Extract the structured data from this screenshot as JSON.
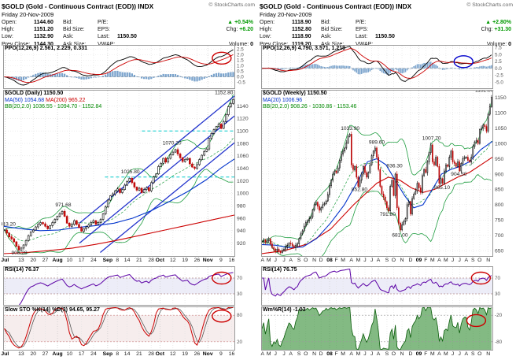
{
  "copyright": "© StockCharts.com",
  "panels": [
    {
      "header": {
        "title": "$GOLD (Gold - Continuous Contract (EOD)) INDX",
        "date": "Friday 20-Nov-2009",
        "rows": {
          "open_label": "Open:",
          "open": "1144.60",
          "high_label": "High:",
          "high": "1151.20",
          "low_label": "Low:",
          "low": "1132.90",
          "prev_label": "Prev Close:",
          "prev": "1144.30",
          "bid_label": "Bid:",
          "bidsize_label": "Bid Size:",
          "ask_label": "Ask:",
          "asksize_label": "Ask Size:",
          "pe_label": "P/E:",
          "eps_label": "EPS:",
          "last_label": "Last:",
          "last": "1150.50",
          "vwap_label": "VWAP:",
          "arrow": "▲",
          "pct": "+0.54%",
          "chg_label": "Chg:",
          "chg": "+6.20",
          "volume_label": "Volume:",
          "volume": "0"
        }
      },
      "legend": {
        "title": "$GOLD (Daily) 1150.50",
        "ma_short": "MA(50) 1054.68",
        "ma_long": "MA(200) 965.22",
        "bb": "BB(20,2.0) 1036.55 - 1094.70 - 1152.84"
      },
      "ppo_label": "PPO(12,26,9) 2.561, 2.229, 0.331",
      "rsi_label": "RSI(14) 76.37",
      "osc_label": "Slow STO %K(14) %D(3) 94.65, 95.27"
    },
    {
      "header": {
        "title": "$GOLD (Gold - Continuous Contract (EOD)) INDX",
        "date": "Friday 20-Nov-2009",
        "rows": {
          "open_label": "Open:",
          "open": "1118.90",
          "high_label": "High:",
          "high": "1152.80",
          "low_label": "Low:",
          "low": "1118.90",
          "prev_label": "Prev Close:",
          "prev": "1119.20",
          "bid_label": "Bid:",
          "bidsize_label": "Bid Size:",
          "ask_label": "Ask:",
          "asksize_label": "Ask Size:",
          "pe_label": "P/E:",
          "eps_label": "EPS:",
          "last_label": "Last:",
          "last": "1150.50",
          "vwap_label": "VWAP:",
          "arrow": "▲",
          "pct": "+2.80%",
          "chg_label": "Chg:",
          "chg": "+31.30",
          "volume_label": "Volume:",
          "volume": "0"
        }
      },
      "legend": {
        "title": "$GOLD (Weekly) 1150.50",
        "ma_short": "MA(20) 1006.96",
        "ma_long": "",
        "bb": "BB(20,2.0) 908.26 - 1030.86 - 1153.46"
      },
      "ppo_label": "PPO(12,26,9) 4.790, 3.571, 1.219",
      "rsi_label": "RSI(14) 76.75",
      "osc_label": "Wm%R(14) -1.03"
    }
  ],
  "chart_data": [
    {
      "type": "candlestick",
      "timeframe": "daily",
      "title": "$GOLD (Daily) 1150.50",
      "ylim": [
        898,
        1166
      ],
      "ytick_min": 920,
      "ytick_max": 1140,
      "ytick_step": 20,
      "wick": 3,
      "closes": [
        941,
        936,
        930,
        927,
        922,
        915,
        909,
        912,
        917,
        924,
        932,
        938,
        941,
        946,
        950,
        953,
        951,
        947,
        943,
        948,
        953,
        958,
        963,
        967,
        971,
        963,
        952,
        947,
        950,
        956,
        950,
        945,
        939,
        943,
        946,
        949,
        953,
        956,
        950,
        953,
        958,
        967,
        978,
        989,
        996,
        999,
        1004,
        1007,
        1001,
        1006,
        1013,
        1019,
        1024,
        1017,
        1010,
        1005,
        1008,
        1001,
        1006,
        1009,
        1004,
        1017,
        1026,
        1031,
        1043,
        1048,
        1056,
        1050,
        1056,
        1062,
        1066,
        1070,
        1063,
        1057,
        1051,
        1054,
        1056,
        1047,
        1042,
        1040,
        1046,
        1054,
        1061,
        1067,
        1071,
        1088,
        1096,
        1102,
        1107,
        1111,
        1104,
        1115,
        1126,
        1139,
        1144,
        1150.5
      ],
      "ma_short_pts": [
        [
          0,
          947
        ],
        [
          0.08,
          943
        ],
        [
          0.16,
          940
        ],
        [
          0.24,
          941
        ],
        [
          0.32,
          945
        ],
        [
          0.4,
          948
        ],
        [
          0.48,
          952
        ],
        [
          0.56,
          960
        ],
        [
          0.64,
          972
        ],
        [
          0.72,
          987
        ],
        [
          0.8,
          1003
        ],
        [
          0.88,
          1022
        ],
        [
          0.94,
          1040
        ],
        [
          1,
          1055
        ]
      ],
      "ma_long_pts": [
        [
          0,
          903
        ],
        [
          0.1,
          905
        ],
        [
          0.2,
          908
        ],
        [
          0.3,
          912
        ],
        [
          0.4,
          918
        ],
        [
          0.5,
          925
        ],
        [
          0.6,
          933
        ],
        [
          0.7,
          941
        ],
        [
          0.8,
          949
        ],
        [
          0.9,
          957
        ],
        [
          1,
          965
        ]
      ],
      "price_labels": [
        {
          "t": "913.20",
          "x": 0.02,
          "y": 948
        },
        {
          "t": "908.28",
          "x": 0.07,
          "y": 902
        },
        {
          "t": "971.68",
          "x": 0.26,
          "y": 979
        },
        {
          "t": "1025.80",
          "x": 0.55,
          "y": 1032
        },
        {
          "t": "1070.20",
          "x": 0.73,
          "y": 1078
        },
        {
          "t": "1152.80",
          "x": 0.955,
          "y": 1159
        }
      ],
      "hlines": [
        {
          "y": 1100,
          "x1": 0.6,
          "color": "#00cccc"
        },
        {
          "y": 1026,
          "x1": 0.44,
          "color": "#00cccc"
        }
      ],
      "trendlines": [
        {
          "x1": 0.33,
          "y1": 920,
          "x2": 1.0,
          "y2": 1124
        },
        {
          "x1": 0.33,
          "y1": 952,
          "x2": 1.0,
          "y2": 1156
        },
        {
          "x1": 0.42,
          "y1": 905,
          "x2": 1.0,
          "y2": 1081
        }
      ],
      "xlabels": [
        {
          "t": "Jul",
          "x": 0.008,
          "m": 1
        },
        {
          "t": "13",
          "x": 0.078
        },
        {
          "t": "20",
          "x": 0.13
        },
        {
          "t": "27",
          "x": 0.182
        },
        {
          "t": "Aug",
          "x": 0.235,
          "m": 1
        },
        {
          "t": "10",
          "x": 0.287
        },
        {
          "t": "17",
          "x": 0.339
        },
        {
          "t": "24",
          "x": 0.391
        },
        {
          "t": "Sep",
          "x": 0.452,
          "m": 1
        },
        {
          "t": "8",
          "x": 0.494
        },
        {
          "t": "14",
          "x": 0.536
        },
        {
          "t": "21",
          "x": 0.588
        },
        {
          "t": "28",
          "x": 0.64
        },
        {
          "t": "Oct",
          "x": 0.678,
          "m": 1
        },
        {
          "t": "12",
          "x": 0.734
        },
        {
          "t": "19",
          "x": 0.786
        },
        {
          "t": "26",
          "x": 0.838
        },
        {
          "t": "Nov",
          "x": 0.885,
          "m": 1
        },
        {
          "t": "9",
          "x": 0.942
        },
        {
          "t": "16",
          "x": 0.988
        }
      ],
      "ppo": {
        "ylim": [
          -1.1,
          2.9
        ],
        "ticks": [
          "2.5",
          "2.0",
          "1.5",
          "1.0",
          "0.5",
          "0.0",
          "-0.5"
        ],
        "circle": {
          "x": 0.945,
          "y": 0.3,
          "color": "#cc0000"
        }
      },
      "rsi": {
        "ticks": [
          "70",
          "30"
        ],
        "circle": {
          "x": 0.945,
          "y": 0.3,
          "color": "#cc0000"
        }
      },
      "osc": {
        "kind": "sto",
        "ticks": [
          "80",
          "20"
        ],
        "circle": {
          "x": 0.945,
          "y": 0.22,
          "color": "#cc0000"
        }
      }
    },
    {
      "type": "candlestick",
      "timeframe": "weekly",
      "title": "$GOLD (Weekly) 1150.50",
      "ylim": [
        630,
        1175
      ],
      "ytick_min": 650,
      "ytick_max": 1150,
      "ytick_step": 50,
      "wick": 9,
      "closes": [
        680,
        684,
        678,
        682,
        688,
        672,
        660,
        655,
        650,
        655,
        648,
        644,
        650,
        655,
        662,
        668,
        674,
        672,
        666,
        660,
        668,
        672,
        690,
        705,
        715,
        730,
        742,
        748,
        754,
        760,
        783,
        800,
        808,
        795,
        782,
        790,
        800,
        803,
        812,
        833,
        862,
        880,
        900,
        910,
        905,
        920,
        945,
        965,
        975,
        985,
        1002,
        1023,
        1030,
        930,
        915,
        925,
        890,
        860,
        880,
        900,
        925,
        905,
        890,
        905,
        930,
        960,
        975,
        985,
        955,
        915,
        860,
        835,
        825,
        810,
        790,
        780,
        860,
        880,
        830,
        900,
        790,
        740,
        718,
        735,
        745,
        755,
        800,
        810,
        770,
        820,
        835,
        845,
        870,
        855,
        840,
        895,
        915,
        905,
        940,
        970,
        995,
        940,
        930,
        955,
        925,
        870,
        885,
        870,
        910,
        930,
        925,
        955,
        975,
        940,
        935,
        925,
        940,
        910,
        935,
        950,
        955,
        955,
        945,
        940,
        955,
        990,
        1005,
        1010,
        1000,
        1045,
        1050,
        1060,
        1055,
        1040,
        1095,
        1120,
        1150.5
      ],
      "ma_short_pts": [
        [
          0,
          670
        ],
        [
          0.06,
          668
        ],
        [
          0.12,
          660
        ],
        [
          0.18,
          662
        ],
        [
          0.24,
          690
        ],
        [
          0.3,
          740
        ],
        [
          0.36,
          800
        ],
        [
          0.42,
          880
        ],
        [
          0.46,
          940
        ],
        [
          0.5,
          950
        ],
        [
          0.54,
          930
        ],
        [
          0.58,
          880
        ],
        [
          0.62,
          830
        ],
        [
          0.66,
          790
        ],
        [
          0.7,
          800
        ],
        [
          0.74,
          850
        ],
        [
          0.78,
          900
        ],
        [
          0.82,
          915
        ],
        [
          0.86,
          925
        ],
        [
          0.9,
          940
        ],
        [
          0.95,
          980
        ],
        [
          1,
          1007
        ]
      ],
      "ma_long_pts": [
        [
          0,
          640
        ],
        [
          0.1,
          650
        ],
        [
          0.2,
          672
        ],
        [
          0.3,
          720
        ],
        [
          0.4,
          800
        ],
        [
          0.5,
          870
        ],
        [
          0.55,
          890
        ],
        [
          0.6,
          880
        ],
        [
          0.65,
          855
        ],
        [
          0.7,
          840
        ],
        [
          0.75,
          850
        ],
        [
          0.8,
          870
        ],
        [
          0.85,
          890
        ],
        [
          0.9,
          905
        ],
        [
          0.95,
          930
        ],
        [
          1,
          955
        ]
      ],
      "price_labels": [
        {
          "t": "1033.90",
          "x": 0.385,
          "y": 1044
        },
        {
          "t": "989.60",
          "x": 0.5,
          "y": 999
        },
        {
          "t": "936.30",
          "x": 0.577,
          "y": 922
        },
        {
          "t": "852.80",
          "x": 0.425,
          "y": 845
        },
        {
          "t": "791.80",
          "x": 0.547,
          "y": 764
        },
        {
          "t": "681.00",
          "x": 0.6,
          "y": 696
        },
        {
          "t": "1007.70",
          "x": 0.737,
          "y": 1012
        },
        {
          "t": "865.10",
          "x": 0.782,
          "y": 851
        },
        {
          "t": "904.30",
          "x": 0.855,
          "y": 895
        },
        {
          "t": "1152.80",
          "x": 0.965,
          "y": 1168
        }
      ],
      "hlines": [],
      "trendlines": [],
      "xlabels": [
        {
          "t": "A",
          "x": 0.006
        },
        {
          "t": "M",
          "x": 0.033
        },
        {
          "t": "J",
          "x": 0.062
        },
        {
          "t": "J",
          "x": 0.099
        },
        {
          "t": "A",
          "x": 0.128
        },
        {
          "t": "S",
          "x": 0.164
        },
        {
          "t": "O",
          "x": 0.193
        },
        {
          "t": "N",
          "x": 0.23
        },
        {
          "t": "D",
          "x": 0.259
        },
        {
          "t": "08",
          "x": 0.296,
          "m": 1
        },
        {
          "t": "F",
          "x": 0.325
        },
        {
          "t": "M",
          "x": 0.354
        },
        {
          "t": "A",
          "x": 0.39
        },
        {
          "t": "M",
          "x": 0.42
        },
        {
          "t": "J",
          "x": 0.449
        },
        {
          "t": "J",
          "x": 0.478
        },
        {
          "t": "A",
          "x": 0.507
        },
        {
          "t": "S",
          "x": 0.544
        },
        {
          "t": "O",
          "x": 0.573
        },
        {
          "t": "N",
          "x": 0.609
        },
        {
          "t": "D",
          "x": 0.646
        },
        {
          "t": "09",
          "x": 0.682,
          "m": 1
        },
        {
          "t": "F",
          "x": 0.712
        },
        {
          "t": "M",
          "x": 0.741
        },
        {
          "t": "A",
          "x": 0.77
        },
        {
          "t": "M",
          "x": 0.799
        },
        {
          "t": "J",
          "x": 0.828
        },
        {
          "t": "J",
          "x": 0.858
        },
        {
          "t": "A",
          "x": 0.887
        },
        {
          "t": "S",
          "x": 0.916
        },
        {
          "t": "O",
          "x": 0.945
        },
        {
          "t": "N",
          "x": 0.982
        }
      ],
      "ppo": {
        "ylim": [
          -7.5,
          8.5
        ],
        "ticks": [
          "7.5",
          "5.0",
          "2.5",
          "0.0",
          "-2.5",
          "-5.0"
        ],
        "circle": {
          "x": 0.875,
          "y": 0.38,
          "color": "#0000cc"
        }
      },
      "rsi": {
        "ticks": [
          "70",
          "30"
        ],
        "circle": {
          "x": 0.95,
          "y": 0.3,
          "color": "#cc0000"
        }
      },
      "osc": {
        "kind": "wmr",
        "ticks": [
          "-20",
          "-80"
        ],
        "circle": {
          "x": 0.93,
          "y": 0.32,
          "color": "#cc0000"
        }
      }
    }
  ]
}
